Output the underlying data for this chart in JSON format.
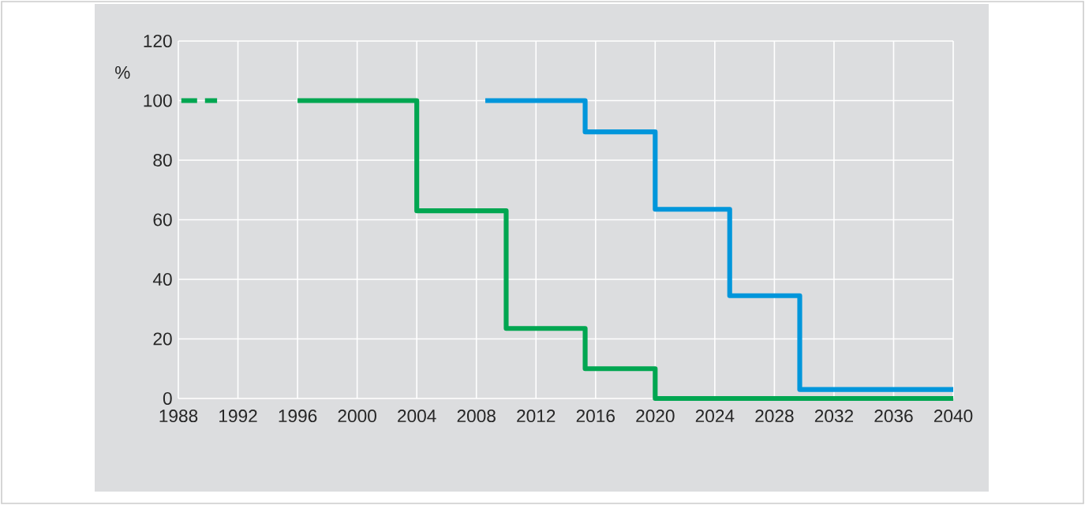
{
  "chart_data": {
    "type": "step",
    "ylabel": "%",
    "xlim": [
      1988,
      2040
    ],
    "ylim": [
      0,
      120
    ],
    "xticks": [
      1988,
      1992,
      1996,
      2000,
      2004,
      2008,
      2012,
      2016,
      2020,
      2024,
      2028,
      2032,
      2036,
      2040
    ],
    "yticks": [
      0,
      20,
      40,
      60,
      80,
      100,
      120
    ],
    "grid": true,
    "marker": "none",
    "series": [
      {
        "color": "#00a651",
        "line_style": "dashed",
        "x": [
          1988.2,
          1990.6
        ],
        "values": [
          100,
          100
        ]
      },
      {
        "color": "#00a651",
        "line_style": "solid",
        "x": [
          1996,
          2004,
          2010,
          2015.3,
          2020,
          2040
        ],
        "values": [
          100,
          63,
          23.5,
          10,
          0,
          0
        ]
      },
      {
        "color": "#0096db",
        "line_style": "solid",
        "x": [
          2008.6,
          2015.3,
          2020,
          2025,
          2029.7,
          2040
        ],
        "values": [
          100,
          89.5,
          63.5,
          34.5,
          3,
          3
        ]
      }
    ]
  }
}
